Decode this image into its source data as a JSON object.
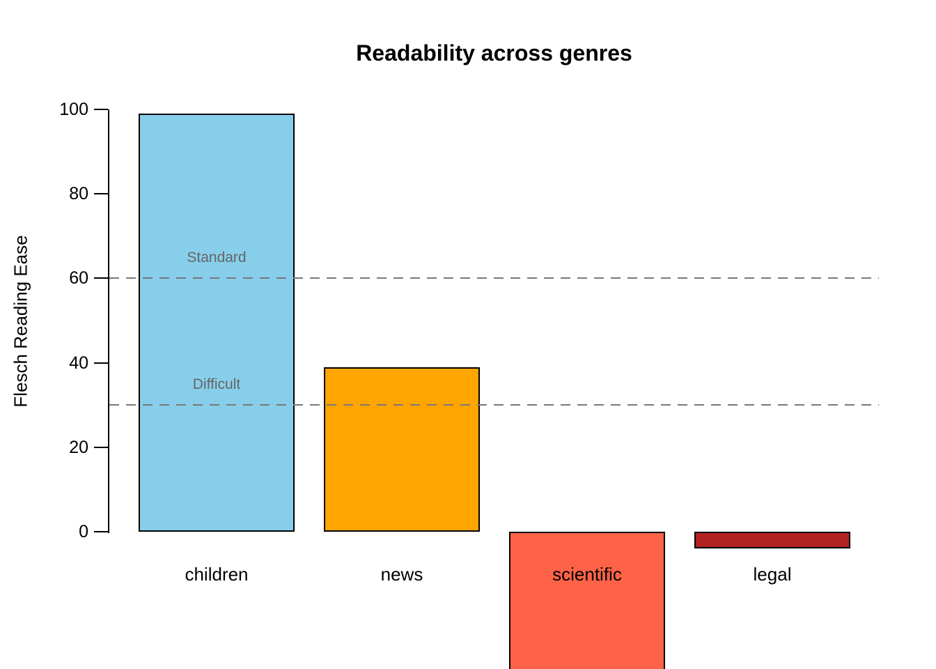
{
  "chart": {
    "title": "Readability across genres",
    "ylabel": "Flesch Reading Ease"
  },
  "chart_data": {
    "type": "bar",
    "title": "Readability across genres",
    "xlabel": "",
    "ylabel": "Flesch Reading Ease",
    "categories": [
      "children",
      "news",
      "scientific",
      "legal"
    ],
    "values": [
      99,
      39,
      -33,
      -4
    ],
    "bar_colors": [
      "#87CEEB",
      "#FFA500",
      "#FF6347",
      "#B22222"
    ],
    "bar_border_color": "#000000",
    "y_ticks": [
      0,
      20,
      40,
      60,
      80,
      100
    ],
    "y_axis_range_drawn": [
      0,
      100
    ],
    "grid": false,
    "legend": false,
    "reference_lines": [
      {
        "value": 60,
        "label": "Standard",
        "style": "dashed",
        "color": "#787878"
      },
      {
        "value": 30,
        "label": "Difficult",
        "style": "dashed",
        "color": "#787878"
      }
    ],
    "annotation_text_color": "#666666",
    "notes": "scientific bar extends below the visible bottom edge of the image (clipped); its depicted value is an estimate"
  }
}
